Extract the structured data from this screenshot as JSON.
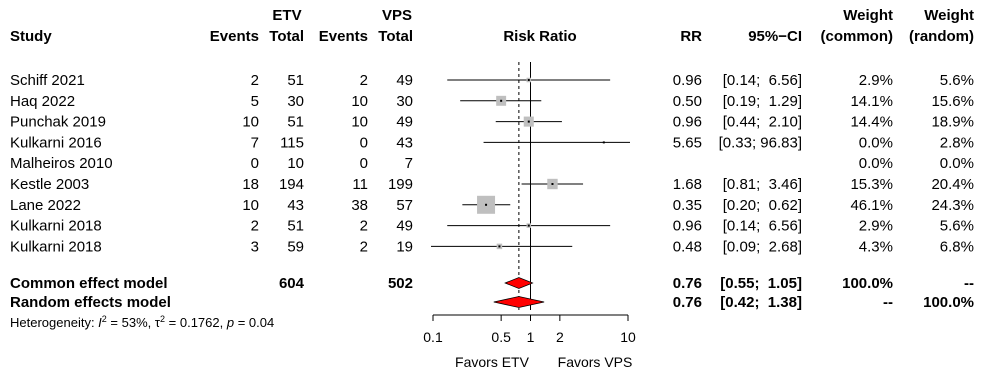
{
  "chart_data": {
    "type": "forest",
    "columns": {
      "study": "Study",
      "group1": "ETV",
      "group2": "VPS",
      "events": "Events",
      "total": "Total",
      "plot": "Risk Ratio",
      "rr": "RR",
      "ci": "95%−CI",
      "weight": "Weight",
      "common": "(common)",
      "random": "(random)"
    },
    "studies": [
      {
        "name": "Schiff 2021",
        "e1": "2",
        "n1": "51",
        "e2": "2",
        "n2": "49",
        "rr": 0.96,
        "lo": 0.14,
        "hi": 6.56,
        "rr_text": "0.96",
        "ci_text": "[0.14;  6.56]",
        "w_common": "2.9%",
        "w_random": "5.6%"
      },
      {
        "name": "Haq 2022",
        "e1": "5",
        "n1": "30",
        "e2": "10",
        "n2": "30",
        "rr": 0.5,
        "lo": 0.19,
        "hi": 1.29,
        "rr_text": "0.50",
        "ci_text": "[0.19;  1.29]",
        "w_common": "14.1%",
        "w_random": "15.6%"
      },
      {
        "name": "Punchak 2019",
        "e1": "10",
        "n1": "51",
        "e2": "10",
        "n2": "49",
        "rr": 0.96,
        "lo": 0.44,
        "hi": 2.1,
        "rr_text": "0.96",
        "ci_text": "[0.44;  2.10]",
        "w_common": "14.4%",
        "w_random": "18.9%"
      },
      {
        "name": "Kulkarni 2016",
        "e1": "7",
        "n1": "115",
        "e2": "0",
        "n2": "43",
        "rr": 5.65,
        "lo": 0.33,
        "hi": 96.83,
        "rr_text": "5.65",
        "ci_text": "[0.33; 96.83]",
        "w_common": "0.0%",
        "w_random": "2.8%"
      },
      {
        "name": "Malheiros 2010",
        "e1": "0",
        "n1": "10",
        "e2": "0",
        "n2": "7",
        "rr": null,
        "lo": null,
        "hi": null,
        "rr_text": "",
        "ci_text": "",
        "w_common": "0.0%",
        "w_random": "0.0%"
      },
      {
        "name": "Kestle 2003",
        "e1": "18",
        "n1": "194",
        "e2": "11",
        "n2": "199",
        "rr": 1.68,
        "lo": 0.81,
        "hi": 3.46,
        "rr_text": "1.68",
        "ci_text": "[0.81;  3.46]",
        "w_common": "15.3%",
        "w_random": "20.4%"
      },
      {
        "name": "Lane 2022",
        "e1": "10",
        "n1": "43",
        "e2": "38",
        "n2": "57",
        "rr": 0.35,
        "lo": 0.2,
        "hi": 0.62,
        "rr_text": "0.35",
        "ci_text": "[0.20;  0.62]",
        "w_common": "46.1%",
        "w_random": "24.3%"
      },
      {
        "name": "Kulkarni 2018",
        "e1": "2",
        "n1": "51",
        "e2": "2",
        "n2": "49",
        "rr": 0.96,
        "lo": 0.14,
        "hi": 6.56,
        "rr_text": "0.96",
        "ci_text": "[0.14;  6.56]",
        "w_common": "2.9%",
        "w_random": "5.6%"
      },
      {
        "name": "Kulkarni 2018",
        "e1": "3",
        "n1": "59",
        "e2": "2",
        "n2": "19",
        "rr": 0.48,
        "lo": 0.09,
        "hi": 2.68,
        "rr_text": "0.48",
        "ci_text": "[0.09;  2.68]",
        "w_common": "4.3%",
        "w_random": "6.8%"
      }
    ],
    "common": {
      "name": "Common effect model",
      "n1": "604",
      "n2": "502",
      "rr": 0.76,
      "lo": 0.55,
      "hi": 1.05,
      "rr_text": "0.76",
      "ci_text": "[0.55;  1.05]",
      "w_common": "100.0%",
      "w_random": "--"
    },
    "random": {
      "name": "Random effects model",
      "rr": 0.76,
      "lo": 0.42,
      "hi": 1.38,
      "rr_text": "0.76",
      "ci_text": "[0.42;  1.38]",
      "w_common": "--",
      "w_random": "100.0%"
    },
    "heterogeneity": {
      "label": "Heterogeneity: ",
      "i2_sym": "I",
      "i2_val": " = 53%, ",
      "tau_sym": "τ",
      "tau_val": " = 0.1762, ",
      "p_sym": "p",
      "p_val": " = 0.04"
    },
    "x_axis": {
      "scale": "log",
      "ticks": [
        0.1,
        0.5,
        1,
        2,
        10
      ],
      "tick_labels": [
        "0.1",
        "0.5",
        "1",
        "2",
        "10"
      ],
      "reference_line": 1,
      "pooled_line": 0.76,
      "left_label": "Favors ETV",
      "right_label": "Favors VPS"
    },
    "colors": {
      "box": "#bfbfbf",
      "diamond": "#ff0000",
      "line": "#000000",
      "guide": "#808080"
    }
  }
}
